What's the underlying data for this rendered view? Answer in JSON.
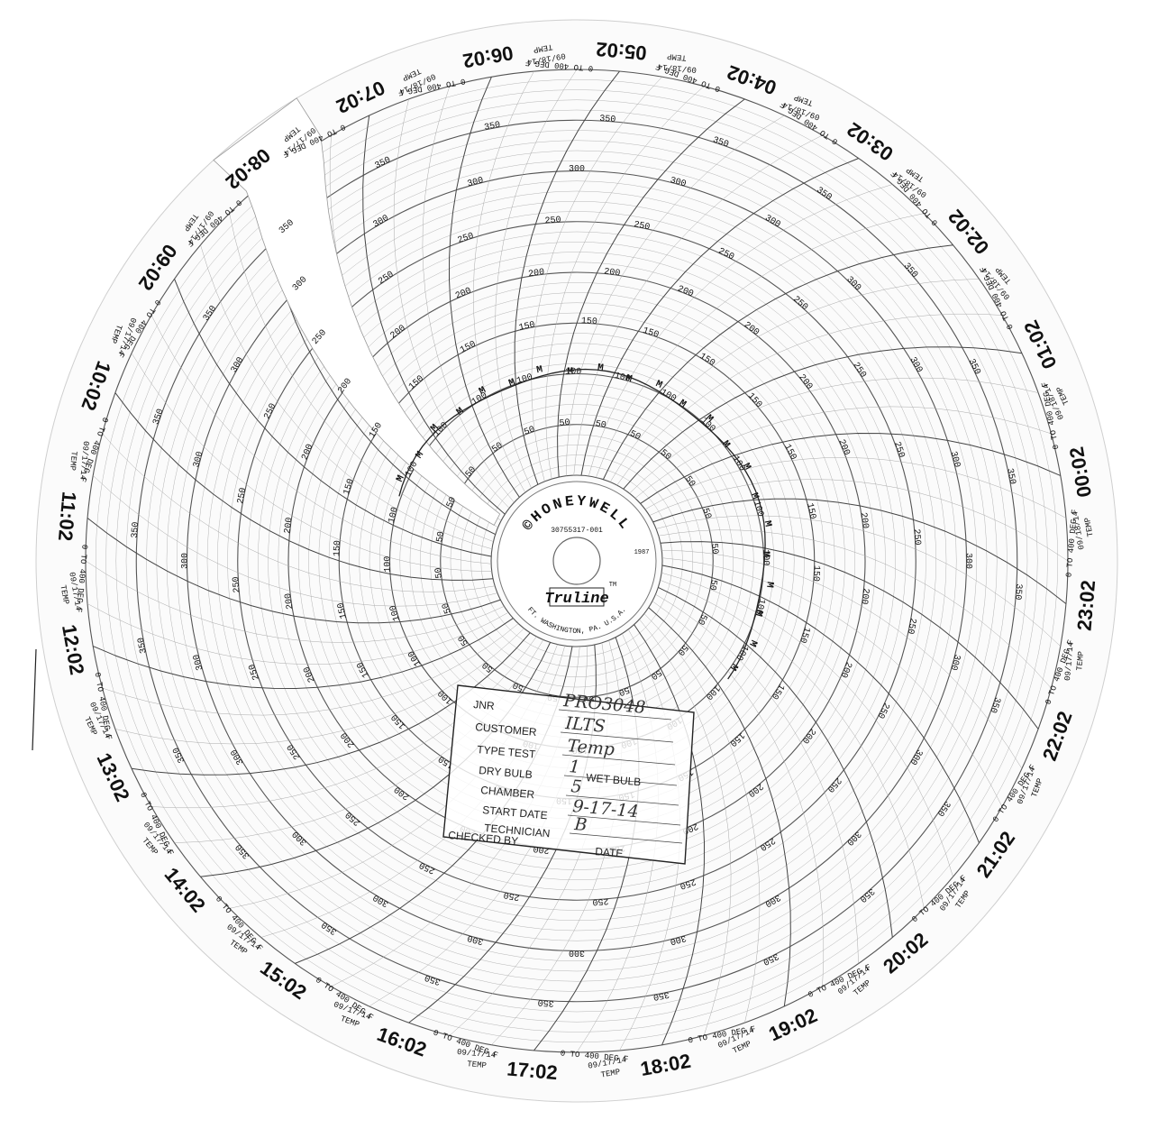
{
  "chart": {
    "brand": "HONEYWELL",
    "copyright_symbol": "©",
    "part_number": "30755317-001",
    "year": "1987",
    "product": "Truline",
    "trademark": "TM",
    "location": "FT. WASHINGTON, PA. U.S.A.",
    "range_label": "0 TO 400 DEG F",
    "var_label": "TEMP",
    "scale_values": [
      "50",
      "100",
      "150",
      "200",
      "250",
      "300",
      "350"
    ],
    "marker_glyph": "M",
    "hour_labels": [
      {
        "time": "14:02",
        "date": "09/17/14"
      },
      {
        "time": "15:02",
        "date": "09/17/14"
      },
      {
        "time": "16:02",
        "date": "09/17/14"
      },
      {
        "time": "17:02",
        "date": "09/17/14"
      },
      {
        "time": "18:02",
        "date": "09/17/14"
      },
      {
        "time": "19:02",
        "date": "09/17/14"
      },
      {
        "time": "20:02",
        "date": "09/17/14"
      },
      {
        "time": "21:02",
        "date": "09/17/14"
      },
      {
        "time": "22:02",
        "date": "09/17/14"
      },
      {
        "time": "23:02",
        "date": "09/17/14"
      },
      {
        "time": "00:02",
        "date": "09/18/14"
      },
      {
        "time": "01:02",
        "date": "09/18/14"
      },
      {
        "time": "02:02",
        "date": "09/18/14"
      },
      {
        "time": "03:02",
        "date": "09/18/14"
      },
      {
        "time": "04:02",
        "date": "09/18/14"
      },
      {
        "time": "05:02",
        "date": "09/18/14"
      },
      {
        "time": "06:02",
        "date": "09/18/14"
      },
      {
        "time": "07:02",
        "date": "09/18/14"
      },
      {
        "time": "08:02",
        "date": "09/17/14"
      },
      {
        "time": "09:02",
        "date": "09/17/14"
      },
      {
        "time": "10:02",
        "date": "09/17/14"
      },
      {
        "time": "11:02",
        "date": "09/17/14"
      },
      {
        "time": "12:02",
        "date": "09/17/14"
      },
      {
        "time": "13:02",
        "date": "09/17/14"
      }
    ]
  },
  "stamp": {
    "job_label": "JNR",
    "job_value": "PRO3048",
    "customer_label": "CUSTOMER",
    "customer_value": "ILTS",
    "type_label": "TYPE TEST",
    "type_value": "Temp",
    "dry_label": "DRY BULB",
    "dry_value": "1",
    "wet_label": "WET BULB",
    "chamber_label": "CHAMBER",
    "chamber_value": "5",
    "start_label": "START DATE",
    "start_value": "9-17-14",
    "tech_label": "TECHNICIAN",
    "tech_value": "B",
    "checked_label": "CHECKED BY",
    "date_label": "DATE"
  }
}
